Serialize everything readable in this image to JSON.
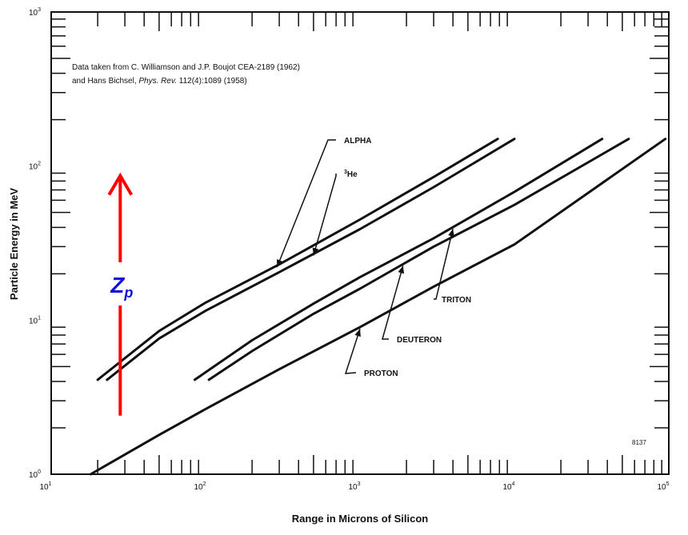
{
  "chart_data": {
    "type": "line",
    "xscale": "log",
    "yscale": "log",
    "xlim": [
      10,
      100000
    ],
    "ylim": [
      1,
      1000
    ],
    "xlabel": "Range in Microns of Silicon",
    "ylabel": "Particle Energy in MeV",
    "x_ticks": [
      {
        "base": "10",
        "exp": "1"
      },
      {
        "base": "10",
        "exp": "2"
      },
      {
        "base": "10",
        "exp": "3"
      },
      {
        "base": "10",
        "exp": "4"
      },
      {
        "base": "10",
        "exp": "5"
      }
    ],
    "y_ticks": [
      {
        "base": "10",
        "exp": "0"
      },
      {
        "base": "10",
        "exp": "1"
      },
      {
        "base": "10",
        "exp": "2"
      },
      {
        "base": "10",
        "exp": "3"
      }
    ],
    "note_line1": "Data taken from C. Williamson and J.P. Boujot CEA-2189 (1962)",
    "note_line2": {
      "a": "and Hans Bichsel, ",
      "b": "Phys. Rev.",
      "c": " 112(4):1089 (1958)"
    },
    "figure_id": "8137",
    "series": [
      {
        "name": "ALPHA",
        "x": [
          20,
          50,
          100,
          300,
          1000,
          3000,
          7800
        ],
        "y": [
          4.1,
          8.5,
          13,
          23,
          45,
          85,
          150
        ]
      },
      {
        "name": "³He",
        "label_sup": "3",
        "label_main": "He",
        "x": [
          23,
          50,
          100,
          300,
          1000,
          3000,
          10000
        ],
        "y": [
          4.1,
          7.6,
          11.5,
          20.5,
          39,
          73,
          150
        ]
      },
      {
        "name": "TRITON",
        "x": [
          85,
          200,
          500,
          1000,
          3000,
          10000,
          37000
        ],
        "y": [
          4.1,
          7.4,
          12.8,
          19,
          34,
          68,
          150
        ]
      },
      {
        "name": "DEUTERON",
        "x": [
          105,
          200,
          500,
          1000,
          3000,
          10000,
          55000
        ],
        "y": [
          4.1,
          6.3,
          11,
          16,
          30,
          56,
          150
        ]
      },
      {
        "name": "PROTON",
        "x": [
          18,
          50,
          100,
          300,
          1000,
          3000,
          10000,
          95000
        ],
        "y": [
          1,
          1.8,
          2.65,
          4.8,
          9,
          16.5,
          31,
          150
        ]
      }
    ],
    "annotation": {
      "symbol": "Z",
      "subscript": "p",
      "arrow_color": "#ff0000",
      "label_color": "#1010dd",
      "arrow_x": 28,
      "arrow_y_from": 2.4,
      "arrow_y_to": 100
    }
  }
}
